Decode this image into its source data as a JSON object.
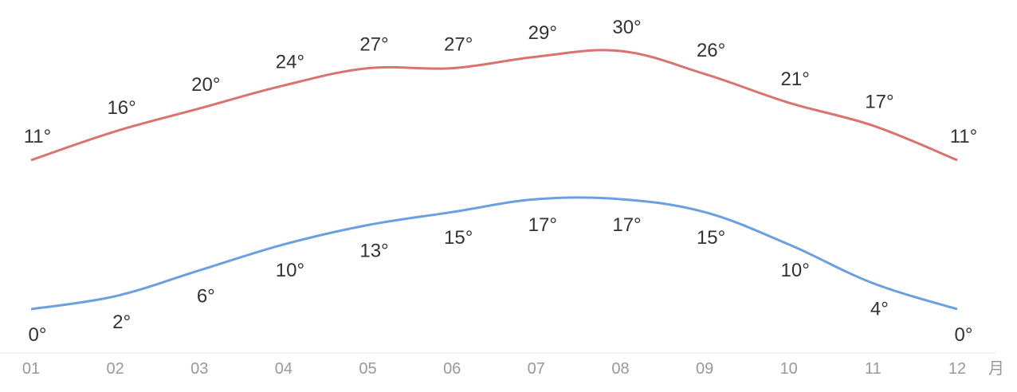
{
  "chart_data": {
    "type": "line",
    "categories": [
      "01",
      "02",
      "03",
      "04",
      "05",
      "06",
      "07",
      "08",
      "09",
      "10",
      "11",
      "12"
    ],
    "x_unit": "月",
    "series": [
      {
        "values": [
          11,
          16,
          20,
          24,
          27,
          27,
          29,
          30,
          26,
          21,
          17,
          11
        ],
        "color": "#d9736f"
      },
      {
        "values": [
          0,
          2,
          6,
          10,
          13,
          15,
          17,
          17,
          15,
          10,
          4,
          0
        ],
        "color": "#6aa0e0"
      }
    ],
    "label_suffix": "°",
    "grid": false,
    "legend": "none",
    "axis_color": "#e5e5e5"
  }
}
